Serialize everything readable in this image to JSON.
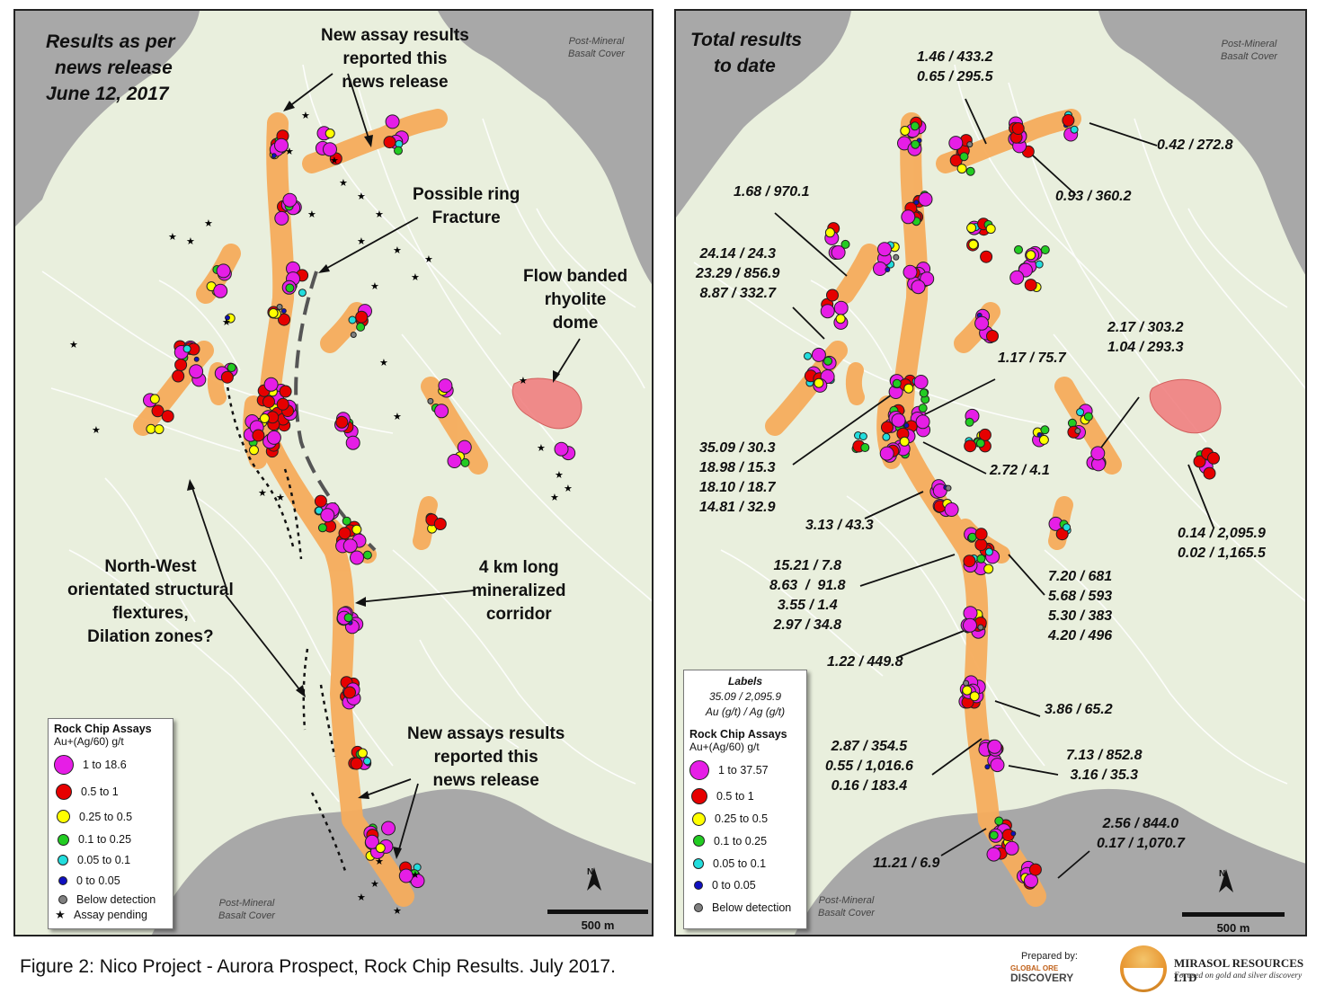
{
  "caption": "Figure 2: Nico Project - Aurora Prospect, Rock Chip Results. July 2017.",
  "left_panel": {
    "title_lines": [
      "Results as per",
      "news release",
      "June 12, 2017"
    ],
    "callouts": {
      "new_assay_top": [
        "New assay results",
        "reported this",
        "news release"
      ],
      "ring_fracture": [
        "Possible ring",
        "Fracture"
      ],
      "rhyolite_dome": [
        "Flow banded",
        "rhyolite",
        "dome"
      ],
      "flextures": [
        "North-West",
        "orientated structural",
        "flextures,",
        "Dilation zones?"
      ],
      "corridor": [
        "4 km long",
        "mineralized",
        "corridor"
      ],
      "new_assay_bottom": [
        "New assays results",
        "reported this",
        "news release"
      ]
    },
    "cover_labels": [
      [
        "Post-Mineral",
        "Basalt Cover"
      ],
      [
        "Post-Mineral",
        "Basalt Cover"
      ]
    ],
    "legend": {
      "title": "Rock Chip Assays",
      "subtitle": "Au+(Ag/60) g/t",
      "items": [
        {
          "label": "1 to 18.6",
          "color": "#e61ee6"
        },
        {
          "label": "0.5 to 1",
          "color": "#e60000"
        },
        {
          "label": "0.25 to 0.5",
          "color": "#ffff00"
        },
        {
          "label": "0.1 to 0.25",
          "color": "#22cc22"
        },
        {
          "label": "0.05 to 0.1",
          "color": "#22dddd"
        },
        {
          "label": "0 to 0.05",
          "color": "#1010c0"
        },
        {
          "label": "Below detection",
          "color": "#808080"
        },
        {
          "label": "Assay pending",
          "color": "#000000"
        }
      ]
    },
    "north_label": "N",
    "scale_label": "500 m"
  },
  "right_panel": {
    "title_lines": [
      "Total results",
      "to date"
    ],
    "cover_labels": [
      [
        "Post-Mineral",
        "Basalt Cover"
      ],
      [
        "Post-Mineral",
        "Basalt Cover"
      ]
    ],
    "value_labels": {
      "v1": [
        "1.46 / 433.2",
        "0.65 / 295.5"
      ],
      "v2": [
        "0.42 / 272.8"
      ],
      "v3": [
        "0.93 / 360.2"
      ],
      "v4": [
        "1.68 / 970.1"
      ],
      "v5": [
        "24.14 / 24.3",
        "23.29 / 856.9",
        "8.87 / 332.7"
      ],
      "v6": [
        "2.17 / 303.2",
        "1.04 / 293.3"
      ],
      "v7": [
        "1.17 / 75.7"
      ],
      "v8": [
        "35.09 / 30.3",
        "18.98 / 15.3",
        "18.10 / 18.7",
        "14.81 / 32.9"
      ],
      "v9": [
        "2.72 / 4.1"
      ],
      "v10": [
        "3.13 / 43.3"
      ],
      "v11": [
        "0.14 / 2,095.9",
        "0.02 / 1,165.5"
      ],
      "v12": [
        "15.21 / 7.8",
        "8.63  /  91.8",
        "3.55 / 1.4",
        "2.97 / 34.8"
      ],
      "v13": [
        "7.20 / 681",
        "5.68 / 593",
        "5.30 / 383",
        "4.20 / 496"
      ],
      "v14": [
        "1.22 / 449.8"
      ],
      "v15": [
        "3.86 / 65.2"
      ],
      "v16": [
        "2.87 / 354.5",
        "0.55 / 1,016.6",
        "0.16 / 183.4"
      ],
      "v17": [
        "7.13 / 852.8",
        "3.16 / 35.3"
      ],
      "v18": [
        "2.56 / 844.0",
        "0.17 / 1,070.7"
      ],
      "v19": [
        "11.21 / 6.9"
      ]
    },
    "legend": {
      "labels_title": "Labels",
      "labels_example": "35.09 / 2,095.9",
      "labels_units": "Au (g/t) / Ag (g/t)",
      "title": "Rock Chip Assays",
      "subtitle": "Au+(Ag/60) g/t",
      "items": [
        {
          "label": "1 to 37.57",
          "color": "#e61ee6"
        },
        {
          "label": "0.5 to 1",
          "color": "#e60000"
        },
        {
          "label": "0.25 to 0.5",
          "color": "#ffff00"
        },
        {
          "label": "0.1 to 0.25",
          "color": "#22cc22"
        },
        {
          "label": "0.05 to 0.1",
          "color": "#22dddd"
        },
        {
          "label": "0 to 0.05",
          "color": "#1010c0"
        },
        {
          "label": "Below detection",
          "color": "#808080"
        }
      ]
    },
    "north_label": "N",
    "scale_label": "500 m"
  },
  "logos": {
    "prepared_by": "Prepared by:",
    "god_small": "GLOBAL ORE",
    "god_big": "DISCOVERY",
    "mirasol_title": "MIRASOL RESOURCES LTD",
    "mirasol_sub": "Focused on gold and silver discovery"
  },
  "style": {
    "corridor_color": "#f6ac5c",
    "basalt_color": "#a8a8a8",
    "land_color": "#e9efdd",
    "dome_color": "#f08080"
  }
}
